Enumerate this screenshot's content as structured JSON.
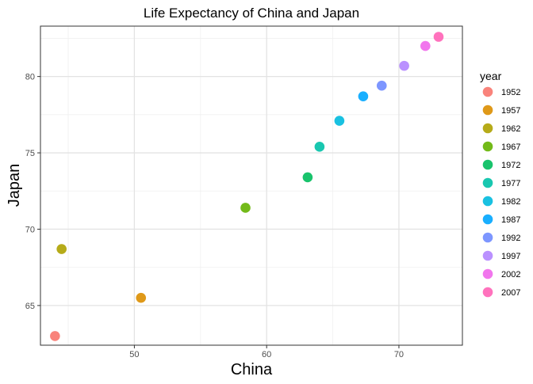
{
  "chart_data": {
    "type": "scatter",
    "title": "Life Expectancy of China and Japan",
    "xlabel": "China",
    "ylabel": "Japan",
    "xlim": [
      42.9,
      74.8
    ],
    "ylim": [
      62.4,
      83.3
    ],
    "x_ticks": [
      50,
      60,
      70
    ],
    "y_ticks": [
      65,
      70,
      75,
      80
    ],
    "grid": true,
    "legend": {
      "title": "year",
      "placement": "right"
    },
    "series": [
      {
        "name": "1952",
        "color": "#F8766D",
        "x": 44.0,
        "y": 63.0
      },
      {
        "name": "1957",
        "color": "#DB8E00",
        "x": 50.5,
        "y": 65.5
      },
      {
        "name": "1962",
        "color": "#AEA200",
        "x": 44.5,
        "y": 68.7
      },
      {
        "name": "1967",
        "color": "#64B200",
        "x": 58.4,
        "y": 71.4
      },
      {
        "name": "1972",
        "color": "#00BD5C",
        "x": 63.1,
        "y": 73.4
      },
      {
        "name": "1977",
        "color": "#00C1A7",
        "x": 64.0,
        "y": 75.4
      },
      {
        "name": "1982",
        "color": "#00BADE",
        "x": 65.5,
        "y": 77.1
      },
      {
        "name": "1987",
        "color": "#00A6FF",
        "x": 67.3,
        "y": 78.7
      },
      {
        "name": "1992",
        "color": "#6F8BFF",
        "x": 68.7,
        "y": 79.4
      },
      {
        "name": "1997",
        "color": "#B385FF",
        "x": 70.4,
        "y": 80.7
      },
      {
        "name": "2002",
        "color": "#EF67EB",
        "x": 72.0,
        "y": 82.0
      },
      {
        "name": "2007",
        "color": "#FF63B6",
        "x": 73.0,
        "y": 82.6
      }
    ]
  }
}
